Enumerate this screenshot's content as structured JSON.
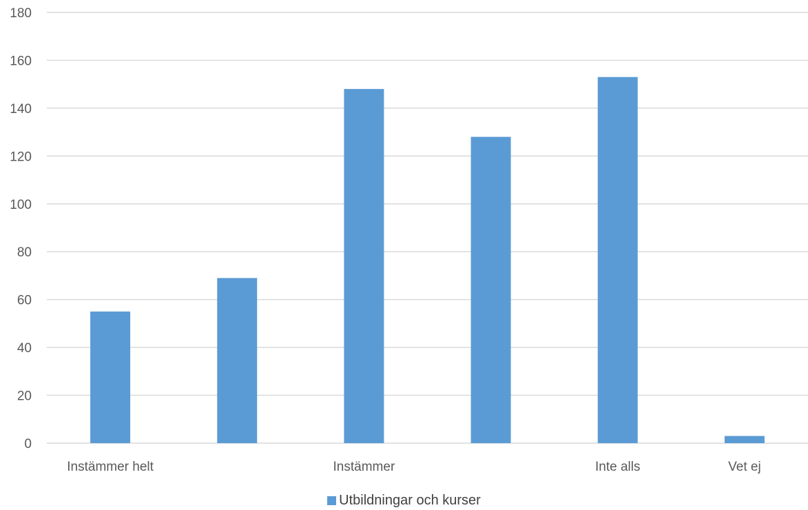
{
  "chart_data": {
    "type": "bar",
    "categories": [
      "Instämmer helt",
      "",
      "Instämmer",
      "",
      "Inte alls",
      "Vet ej"
    ],
    "series": [
      {
        "name": "Utbildningar och kurser",
        "values": [
          55,
          69,
          148,
          128,
          153,
          3
        ]
      }
    ],
    "ylim": [
      0,
      180
    ],
    "yticks": [
      0,
      20,
      40,
      60,
      80,
      100,
      120,
      140,
      160,
      180
    ],
    "grid": true,
    "legend_position": "bottom",
    "colors": {
      "bar": "#5b9bd5",
      "grid": "#d9d9d9",
      "text": "#595959"
    }
  }
}
